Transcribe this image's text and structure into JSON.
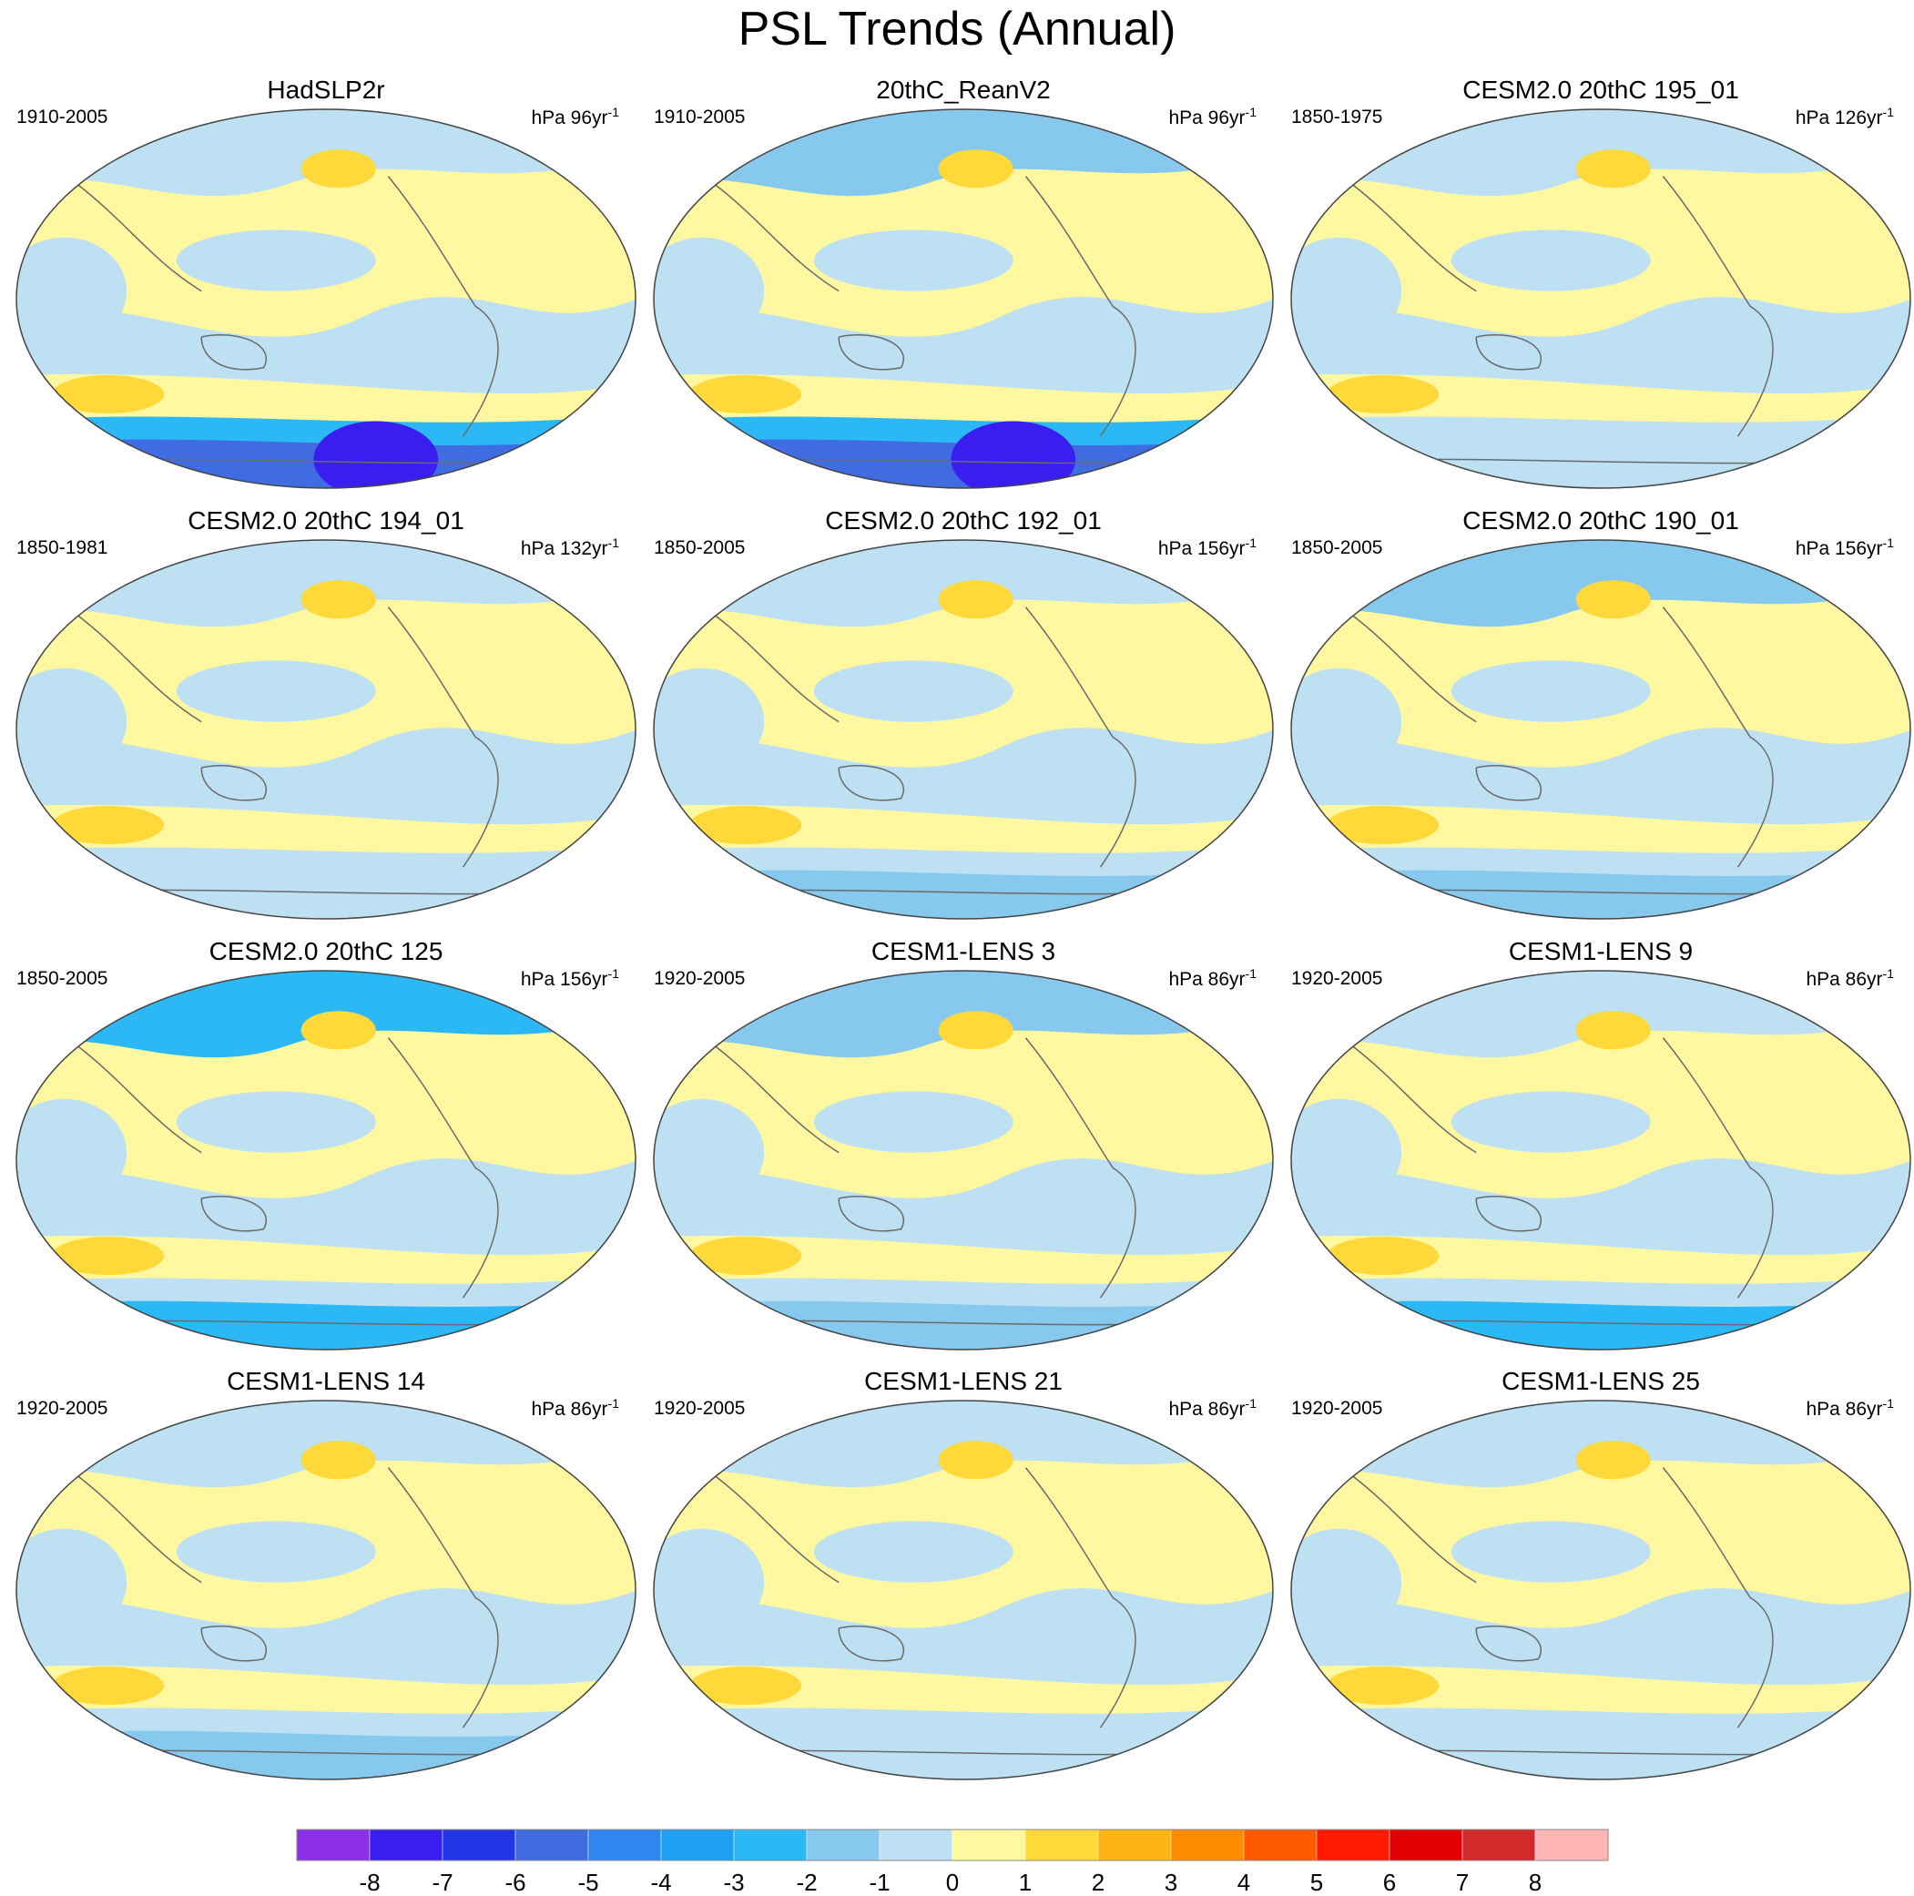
{
  "title": "PSL Trends (Annual)",
  "panels": [
    {
      "title": "HadSLP2r",
      "years": "1910-2005",
      "units": "hPa 96yr",
      "units_exp": "-1",
      "south_ocean_level": -6,
      "north_level": -1
    },
    {
      "title": "20thC_ReanV2",
      "years": "1910-2005",
      "units": "hPa 96yr",
      "units_exp": "-1",
      "south_ocean_level": -6,
      "north_level": -2
    },
    {
      "title": "CESM2.0 20thC 195_01",
      "years": "1850-1975",
      "units": "hPa 126yr",
      "units_exp": "-1",
      "south_ocean_level": 0,
      "north_level": -1
    },
    {
      "title": "CESM2.0 20thC 194_01",
      "years": "1850-1981",
      "units": "hPa 132yr",
      "units_exp": "-1",
      "south_ocean_level": -1,
      "north_level": -1
    },
    {
      "title": "CESM2.0 20thC 192_01",
      "years": "1850-2005",
      "units": "hPa 156yr",
      "units_exp": "-1",
      "south_ocean_level": -2,
      "north_level": -1
    },
    {
      "title": "CESM2.0 20thC 190_01",
      "years": "1850-2005",
      "units": "hPa 156yr",
      "units_exp": "-1",
      "south_ocean_level": -2,
      "north_level": -2
    },
    {
      "title": "CESM2.0 20thC 125",
      "years": "1850-2005",
      "units": "hPa 156yr",
      "units_exp": "-1",
      "south_ocean_level": -3,
      "north_level": -3
    },
    {
      "title": "CESM1-LENS 3",
      "years": "1920-2005",
      "units": "hPa 86yr",
      "units_exp": "-1",
      "south_ocean_level": -2,
      "north_level": -2
    },
    {
      "title": "CESM1-LENS 9",
      "years": "1920-2005",
      "units": "hPa 86yr",
      "units_exp": "-1",
      "south_ocean_level": -3,
      "north_level": -1
    },
    {
      "title": "CESM1-LENS 14",
      "years": "1920-2005",
      "units": "hPa 86yr",
      "units_exp": "-1",
      "south_ocean_level": -2,
      "north_level": -1
    },
    {
      "title": "CESM1-LENS 21",
      "years": "1920-2005",
      "units": "hPa 86yr",
      "units_exp": "-1",
      "south_ocean_level": -1,
      "north_level": -1
    },
    {
      "title": "CESM1-LENS 25",
      "years": "1920-2005",
      "units": "hPa 86yr",
      "units_exp": "-1",
      "south_ocean_level": -1,
      "north_level": -1
    }
  ],
  "colorbar": {
    "colors": [
      "#8b2fe8",
      "#3a1ef0",
      "#2236e8",
      "#3f6ce0",
      "#2f86f0",
      "#1ea0f5",
      "#2cb8f5",
      "#86c8ee",
      "#bde0f2",
      "#fff8a0",
      "#ffd83a",
      "#ffb414",
      "#ff8c00",
      "#ff5a00",
      "#ff1a00",
      "#e00000",
      "#d22a2a",
      "#ffb6b6"
    ],
    "labels": [
      "-8",
      "-7",
      "-6",
      "-5",
      "-4",
      "-3",
      "-2",
      "-1",
      "0",
      "1",
      "2",
      "3",
      "4",
      "5",
      "6",
      "7",
      "8"
    ]
  }
}
